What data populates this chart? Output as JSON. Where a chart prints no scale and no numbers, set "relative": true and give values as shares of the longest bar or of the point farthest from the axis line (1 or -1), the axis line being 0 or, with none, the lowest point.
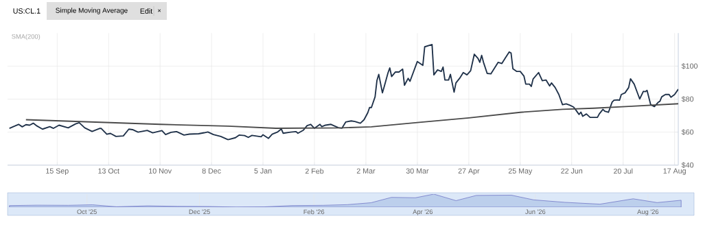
{
  "chart_data": [
    {
      "type": "line",
      "title": "US:CL.1",
      "subtitle": "Simple Moving Average",
      "annotations": [
        "SMA(200)",
        "Edit",
        "×"
      ],
      "series": [
        {
          "color": "#1f3149",
          "x": [
            "2025-08-20",
            "2025-08-23",
            "2025-08-25",
            "2025-08-27",
            "2025-08-29",
            "2025-08-31",
            "2025-09-02",
            "2025-09-04",
            "2025-09-07",
            "2025-09-11",
            "2025-09-13",
            "2025-09-16",
            "2025-09-21",
            "2025-09-25",
            "2025-09-27",
            "2025-09-30",
            "2025-10-04",
            "2025-10-08",
            "2025-10-09",
            "2025-10-12",
            "2025-10-14",
            "2025-10-17",
            "2025-10-21",
            "2025-10-24",
            "2025-10-26",
            "2025-10-29",
            "2025-11-03",
            "2025-11-06",
            "2025-11-11",
            "2025-11-13",
            "2025-11-16",
            "2025-11-19",
            "2025-11-23",
            "2025-11-26",
            "2025-12-01",
            "2025-12-04",
            "2025-12-06",
            "2025-12-09",
            "2025-12-13",
            "2025-12-17",
            "2025-12-21",
            "2025-12-23",
            "2025-12-26",
            "2025-12-28",
            "2025-12-30",
            "2026-01-04",
            "2026-01-05",
            "2026-01-08",
            "2026-01-10",
            "2026-01-13",
            "2026-01-15",
            "2026-01-16",
            "2026-01-20",
            "2026-01-23",
            "2026-01-24",
            "2026-01-27",
            "2026-01-29",
            "2026-01-31",
            "2026-02-02",
            "2026-02-05",
            "2026-02-06",
            "2026-02-08",
            "2026-02-11",
            "2026-02-13",
            "2026-02-15",
            "2026-02-17",
            "2026-02-19",
            "2026-02-22",
            "2026-02-24",
            "2026-02-27",
            "2026-03-01",
            "2026-03-03",
            "2026-03-04",
            "2026-03-05",
            "2026-03-07",
            "2026-03-08",
            "2026-03-09",
            "2026-03-11",
            "2026-03-12",
            "2026-03-14",
            "2026-03-15",
            "2026-03-16",
            "2026-03-18",
            "2026-03-20",
            "2026-03-22",
            "2026-03-23",
            "2026-03-25",
            "2026-03-26",
            "2026-03-28",
            "2026-03-30",
            "2026-04-02",
            "2026-04-03",
            "2026-04-07",
            "2026-04-08",
            "2026-04-10",
            "2026-04-12",
            "2026-04-13",
            "2026-04-14",
            "2026-04-16",
            "2026-04-17",
            "2026-04-19",
            "2026-04-20",
            "2026-04-22",
            "2026-04-24",
            "2026-04-26",
            "2026-04-28",
            "2026-04-30",
            "2026-05-02",
            "2026-05-03",
            "2026-05-04",
            "2026-05-05",
            "2026-05-07",
            "2026-05-09",
            "2026-05-11",
            "2026-05-13",
            "2026-05-15",
            "2026-05-17",
            "2026-05-19",
            "2026-05-20",
            "2026-05-21",
            "2026-05-23",
            "2026-05-25",
            "2026-05-27",
            "2026-05-28",
            "2026-05-30",
            "2026-05-31",
            "2026-06-01",
            "2026-06-04",
            "2026-06-06",
            "2026-06-08",
            "2026-06-10",
            "2026-06-11",
            "2026-06-13",
            "2026-06-15",
            "2026-06-17",
            "2026-06-19",
            "2026-06-21",
            "2026-06-23",
            "2026-06-24",
            "2026-06-26",
            "2026-06-27",
            "2026-06-28",
            "2026-06-30",
            "2026-07-02",
            "2026-07-06",
            "2026-07-07",
            "2026-07-09",
            "2026-07-10",
            "2026-07-12",
            "2026-07-14",
            "2026-07-15",
            "2026-07-17",
            "2026-07-18",
            "2026-07-19",
            "2026-07-21",
            "2026-07-23",
            "2026-07-24",
            "2026-07-26",
            "2026-07-28",
            "2026-07-29",
            "2026-07-31",
            "2026-08-01",
            "2026-08-02",
            "2026-08-04",
            "2026-08-06",
            "2026-08-08",
            "2026-08-09",
            "2026-08-10",
            "2026-08-12",
            "2026-08-14",
            "2026-08-15",
            "2026-08-17",
            "2026-08-19"
          ],
          "values": [
            62.3,
            63.7,
            64.7,
            63.2,
            64.5,
            64.2,
            65.4,
            63.7,
            61.8,
            63.3,
            62.3,
            64.2,
            62.6,
            65.0,
            65.7,
            62.6,
            60.4,
            62.2,
            62.2,
            58.7,
            59.2,
            57.4,
            57.7,
            61.8,
            61.5,
            60.0,
            61.0,
            59.6,
            60.9,
            58.5,
            59.9,
            60.3,
            58.2,
            58.8,
            59.0,
            59.6,
            60.1,
            58.5,
            57.4,
            55.4,
            56.6,
            58.2,
            57.9,
            56.8,
            58.0,
            57.2,
            58.4,
            56.2,
            58.7,
            60.1,
            61.9,
            59.3,
            60.0,
            60.3,
            59.3,
            61.2,
            63.9,
            64.7,
            62.3,
            64.7,
            63.3,
            64.2,
            64.7,
            63.7,
            62.7,
            62.4,
            66.1,
            66.8,
            66.4,
            65.4,
            67.5,
            71.7,
            74.9,
            74.9,
            81.4,
            91.2,
            95.0,
            83.8,
            87.7,
            95.8,
            98.9,
            93.7,
            96.4,
            96.4,
            98.2,
            88.4,
            92.6,
            90.8,
            96.8,
            102.8,
            100.5,
            111.7,
            113.1,
            94.7,
            97.7,
            96.8,
            99.4,
            91.6,
            91.6,
            95.0,
            84.2,
            89.8,
            92.6,
            96.1,
            94.7,
            97.2,
            107.2,
            104.7,
            102.3,
            106.5,
            102.3,
            95.6,
            95.3,
            98.8,
            102.3,
            101.6,
            105.1,
            108.6,
            107.9,
            98.4,
            96.8,
            96.8,
            94.0,
            89.1,
            89.1,
            87.7,
            92.2,
            96.1,
            91.2,
            91.6,
            88.0,
            89.8,
            87.0,
            82.8,
            76.6,
            77.1,
            76.3,
            75.2,
            73.8,
            70.7,
            72.1,
            69.6,
            71.0,
            68.9,
            68.9,
            71.0,
            73.8,
            72.7,
            72.0,
            78.2,
            79.3,
            79.5,
            79.3,
            82.8,
            83.8,
            87.0,
            92.3,
            89.1,
            83.1,
            80.1,
            84.7,
            84.5,
            85.3,
            76.6,
            75.5,
            78.0,
            78.7,
            81.4,
            82.8,
            82.8,
            81.1,
            82.8,
            86.0
          ]
        },
        {
          "color": "#4a4a4a",
          "x": [
            "2025-08-29",
            "2025-11-10",
            "2025-12-17",
            "2026-01-12",
            "2026-02-17",
            "2026-03-05",
            "2026-03-30",
            "2026-04-27",
            "2026-05-25",
            "2026-06-17",
            "2026-07-04",
            "2026-07-23",
            "2026-08-19"
          ],
          "values": [
            67.5,
            64.7,
            63.6,
            62.3,
            62.6,
            63.2,
            65.8,
            68.6,
            72.0,
            73.8,
            74.5,
            75.6,
            77.2
          ]
        }
      ],
      "xlim": [
        "2025-08-19",
        "2026-08-19"
      ],
      "xticks": [
        {
          "value": "2025-09-15",
          "label": "15 Sep"
        },
        {
          "value": "2025-10-13",
          "label": "13 Oct"
        },
        {
          "value": "2025-11-10",
          "label": "10 Nov"
        },
        {
          "value": "2025-12-08",
          "label": "8 Dec"
        },
        {
          "value": "2026-01-05",
          "label": "5 Jan"
        },
        {
          "value": "2026-02-02",
          "label": "2 Feb"
        },
        {
          "value": "2026-03-02",
          "label": "2 Mar"
        },
        {
          "value": "2026-03-30",
          "label": "30 Mar"
        },
        {
          "value": "2026-04-27",
          "label": "27 Apr"
        },
        {
          "value": "2026-05-25",
          "label": "25 May"
        },
        {
          "value": "2026-06-22",
          "label": "22 Jun"
        },
        {
          "value": "2026-07-20",
          "label": "20 Jul"
        },
        {
          "value": "2026-08-17",
          "label": "17 Aug"
        }
      ],
      "ylim": [
        40,
        120
      ],
      "yticks": [
        {
          "value": 40,
          "label": "$40"
        },
        {
          "value": 60,
          "label": "$60"
        },
        {
          "value": 80,
          "label": "$80"
        },
        {
          "value": 100,
          "label": "$100"
        }
      ],
      "grid": true
    },
    {
      "type": "area",
      "relative": true,
      "color": "#bccfec",
      "x": [
        "2025-08-20",
        "2025-09-04",
        "2025-09-21",
        "2025-10-04",
        "2025-10-17",
        "2025-11-03",
        "2025-11-19",
        "2025-12-06",
        "2025-12-21",
        "2026-01-05",
        "2026-01-20",
        "2026-02-06",
        "2026-02-19",
        "2026-03-04",
        "2026-03-15",
        "2026-03-28",
        "2026-04-07",
        "2026-04-19",
        "2026-04-30",
        "2026-05-19",
        "2026-05-31",
        "2026-06-17",
        "2026-07-06",
        "2026-07-24",
        "2026-08-06",
        "2026-08-19"
      ],
      "values": [
        0.12,
        0.15,
        0.14,
        0.18,
        0.03,
        0.1,
        0.06,
        0.05,
        0,
        0.02,
        0.12,
        0.14,
        0.19,
        0.34,
        0.75,
        0.72,
        1,
        0.5,
        0.9,
        0.92,
        0.56,
        0.37,
        0.23,
        0.64,
        0.35,
        0.53
      ],
      "xlim": [
        "2025-08-19",
        "2026-08-26"
      ],
      "xticks": [
        {
          "value": "2025-10-01",
          "label": "Oct '25"
        },
        {
          "value": "2025-12-01",
          "label": "Dec '25"
        },
        {
          "value": "2026-02-01",
          "label": "Feb '26"
        },
        {
          "value": "2026-04-01",
          "label": "Apr '26"
        },
        {
          "value": "2026-06-01",
          "label": "Jun '26"
        },
        {
          "value": "2026-08-01",
          "label": "Aug '26"
        }
      ],
      "grid": "x"
    }
  ]
}
